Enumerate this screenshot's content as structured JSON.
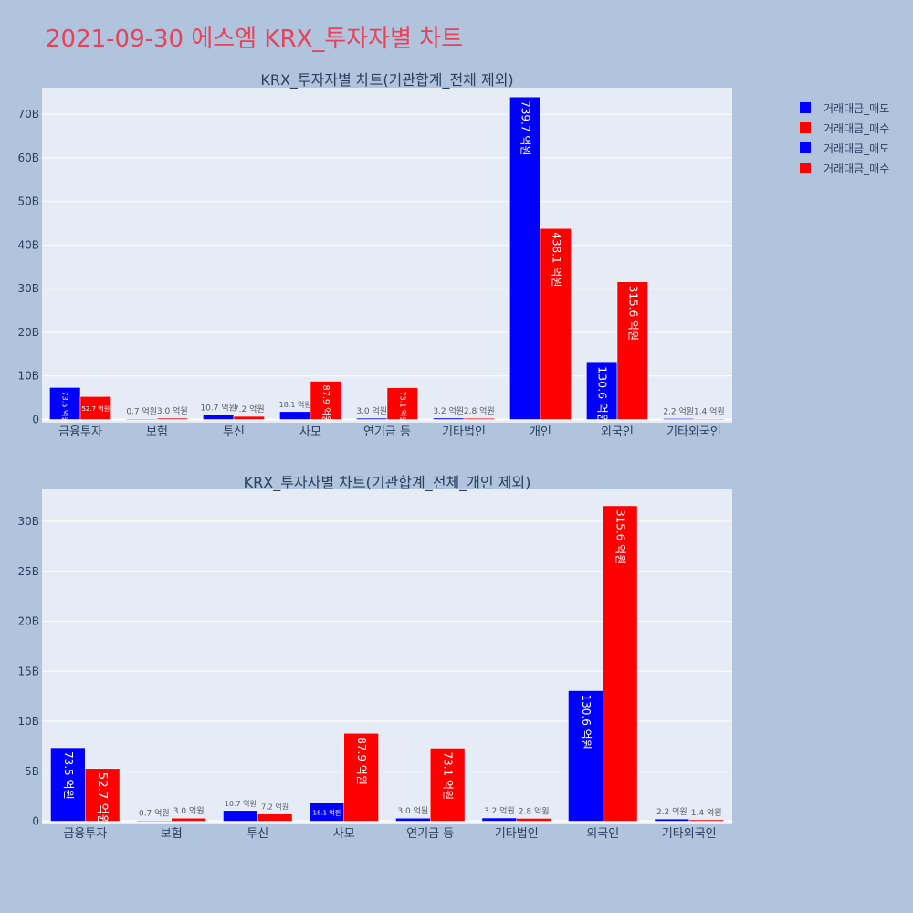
{
  "page_title": "2021-09-30 에스엠 KRX_투자자별 차트",
  "colors": {
    "sell": "#0000ff",
    "buy": "#ff0000",
    "plot_bg": "#e5ecf6",
    "page_bg": "#b0c4de",
    "title": "#e8425a",
    "text": "#2a3f5f"
  },
  "legend": [
    {
      "label": "거래대금_매도",
      "color": "#0000ff"
    },
    {
      "label": "거래대금_매수",
      "color": "#ff0000"
    },
    {
      "label": "거래대금_매도",
      "color": "#0000ff"
    },
    {
      "label": "거래대금_매수",
      "color": "#ff0000"
    }
  ],
  "chart_data": [
    {
      "type": "bar",
      "title": "KRX_투자자별 차트(기관합계_전체 제외)",
      "categories": [
        "금융투자",
        "보험",
        "투신",
        "사모",
        "연기금 등",
        "기타법인",
        "개인",
        "외국인",
        "기타외국인"
      ],
      "series": [
        {
          "name": "거래대금_매도",
          "color": "#0000ff",
          "values": [
            7.35,
            0.07,
            1.07,
            1.81,
            0.3,
            0.32,
            73.97,
            13.06,
            0.22
          ],
          "labels": [
            "73.5 억원",
            "0.7 억원",
            "10.7 억원",
            "18.1 억원",
            "3.0 억원",
            "3.2 억원",
            "739.7 억원",
            "130.6 억원",
            "2.2 억원"
          ]
        },
        {
          "name": "거래대금_매수",
          "color": "#ff0000",
          "values": [
            5.27,
            0.3,
            0.72,
            8.79,
            7.31,
            0.28,
            43.81,
            31.56,
            0.14
          ],
          "labels": [
            "52.7 억원",
            "3.0 억원",
            "7.2 억원",
            "87.9 억원",
            "73.1 억원",
            "2.8 억원",
            "438.1 억원",
            "315.6 억원",
            "1.4 억원"
          ]
        }
      ],
      "yticks": [
        0,
        10,
        20,
        30,
        40,
        50,
        60,
        70
      ],
      "ytick_labels": [
        "0",
        "10B",
        "20B",
        "30B",
        "40B",
        "50B",
        "60B",
        "70B"
      ],
      "ylim": [
        0,
        76.1
      ],
      "grid": true
    },
    {
      "type": "bar",
      "title": "KRX_투자자별 차트(기관합계_전체_개인 제외)",
      "categories": [
        "금융투자",
        "보험",
        "투신",
        "사모",
        "연기금 등",
        "기타법인",
        "외국인",
        "기타외국인"
      ],
      "series": [
        {
          "name": "거래대금_매도",
          "color": "#0000ff",
          "values": [
            7.35,
            0.07,
            1.07,
            1.81,
            0.3,
            0.32,
            13.06,
            0.22
          ],
          "labels": [
            "73.5 억원",
            "0.7 억원",
            "10.7 억원",
            "18.1 억원",
            "3.0 억원",
            "3.2 억원",
            "130.6 억원",
            "2.2 억원"
          ]
        },
        {
          "name": "거래대금_매수",
          "color": "#ff0000",
          "values": [
            5.27,
            0.3,
            0.72,
            8.79,
            7.31,
            0.28,
            31.56,
            0.14
          ],
          "labels": [
            "52.7 억원",
            "3.0 억원",
            "7.2 억원",
            "87.9 억원",
            "73.1 억원",
            "2.8 억원",
            "315.6 억원",
            "1.4 억원"
          ]
        }
      ],
      "yticks": [
        0,
        5,
        10,
        15,
        20,
        25,
        30
      ],
      "ytick_labels": [
        "0",
        "5B",
        "10B",
        "15B",
        "20B",
        "25B",
        "30B"
      ],
      "ylim": [
        0,
        33.2
      ],
      "grid": true
    }
  ]
}
